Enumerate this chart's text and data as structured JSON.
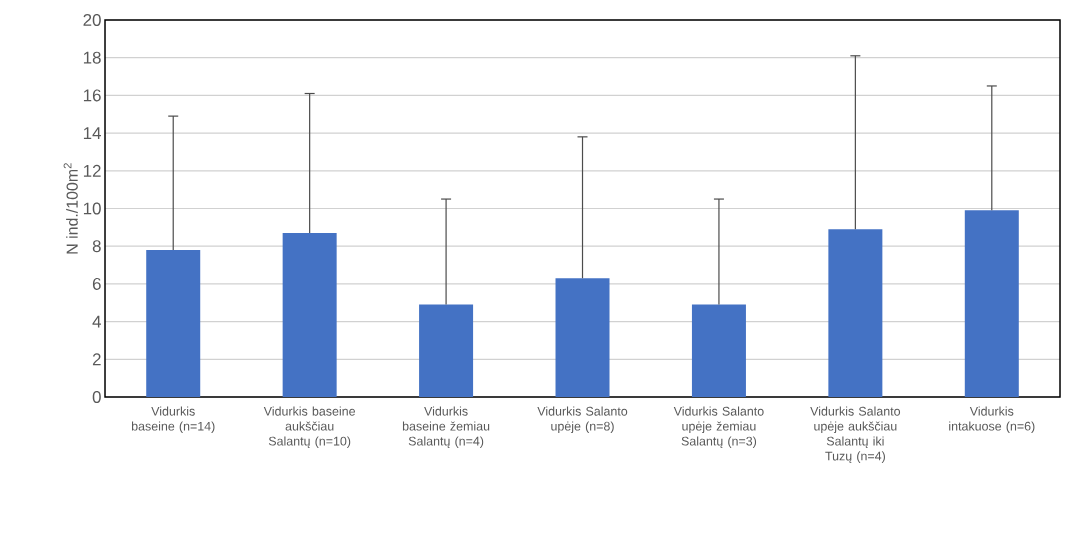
{
  "chart_data": {
    "type": "bar",
    "ylabel": "N ind./100m$^{2}$",
    "categories": [
      "Vidurkis baseine (n=14)",
      "Vidurkis baseine aukščiau Salantų (n=10)",
      "Vidurkis baseine žemiau Salantų (n=4)",
      "Vidurkis Salanto upėje (n=8)",
      "Vidurkis Salanto upėje žemiau Salantų (n=3)",
      "Vidurkis Salanto upėje aukščiau Salantų iki Tuzų (n=4)",
      "Vidurkis intakuose (n=6)"
    ],
    "values": [
      7.8,
      8.7,
      4.9,
      6.3,
      4.9,
      8.9,
      9.9
    ],
    "errors": [
      [
        7.8,
        14.9
      ],
      [
        8.7,
        16.1
      ],
      [
        4.9,
        10.5
      ],
      [
        6.3,
        13.8
      ],
      [
        4.9,
        10.5
      ],
      [
        8.9,
        18.1
      ],
      [
        9.9,
        16.5
      ]
    ],
    "color": "#4472c4",
    "ylim": [
      0,
      20
    ],
    "yticks": [
      0,
      2,
      4,
      6,
      8,
      10,
      12,
      14,
      16,
      18,
      20
    ],
    "grid": "y"
  }
}
